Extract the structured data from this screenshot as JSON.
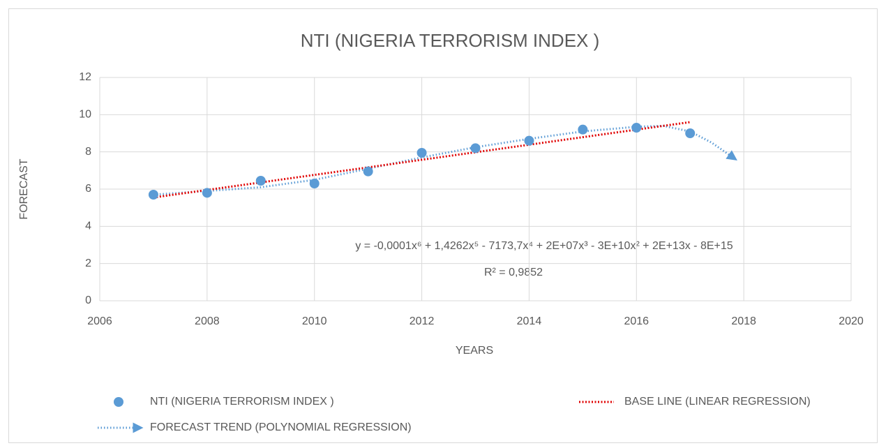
{
  "chart_data": {
    "type": "scatter",
    "title": "NTI (NIGERIA TERRORISM INDEX )",
    "x_label": "YEARS",
    "y_label": "FORECAST",
    "xlim": [
      2006,
      2020
    ],
    "xticks": [
      2006,
      2008,
      2010,
      2012,
      2014,
      2016,
      2018,
      2020
    ],
    "ylim": [
      0,
      12
    ],
    "yticks": [
      0,
      2,
      4,
      6,
      8,
      10,
      12
    ],
    "grid": true,
    "legend": "bottom",
    "series": [
      {
        "name": "NTI (NIGERIA TERRORISM INDEX )",
        "color": "#5b9bd5",
        "style": "marker",
        "x": [
          2007,
          2008,
          2009,
          2010,
          2011,
          2012,
          2013,
          2014,
          2015,
          2016,
          2017
        ],
        "values": [
          5.7,
          5.8,
          6.45,
          6.3,
          6.95,
          7.95,
          8.2,
          8.6,
          9.2,
          9.3,
          9.0
        ]
      },
      {
        "name": "BASE LINE (LINEAR REGRESSION)",
        "color": "#e00000",
        "style": "dotted",
        "x": [
          2007,
          2017
        ],
        "values": [
          5.55,
          9.6
        ]
      },
      {
        "name": "FORECAST TREND (POLYNOMIAL REGRESSION)",
        "color": "#5b9bd5",
        "style": "dotted-arrow",
        "x": [
          2007,
          2008,
          2009,
          2010,
          2011,
          2012,
          2013,
          2014,
          2015,
          2016,
          2016.5,
          2017,
          2017.4,
          2017.8
        ],
        "values": [
          5.7,
          5.9,
          6.1,
          6.5,
          7.1,
          7.7,
          8.25,
          8.7,
          9.1,
          9.35,
          9.4,
          9.1,
          8.5,
          7.7
        ]
      }
    ],
    "annotations": [
      "y = -0,0001x⁶ + 1,4262x⁵ - 7173,7x⁴ + 2E+07x³ - 3E+10x² + 2E+13x - 8E+15",
      "R² = 0,9852"
    ]
  }
}
